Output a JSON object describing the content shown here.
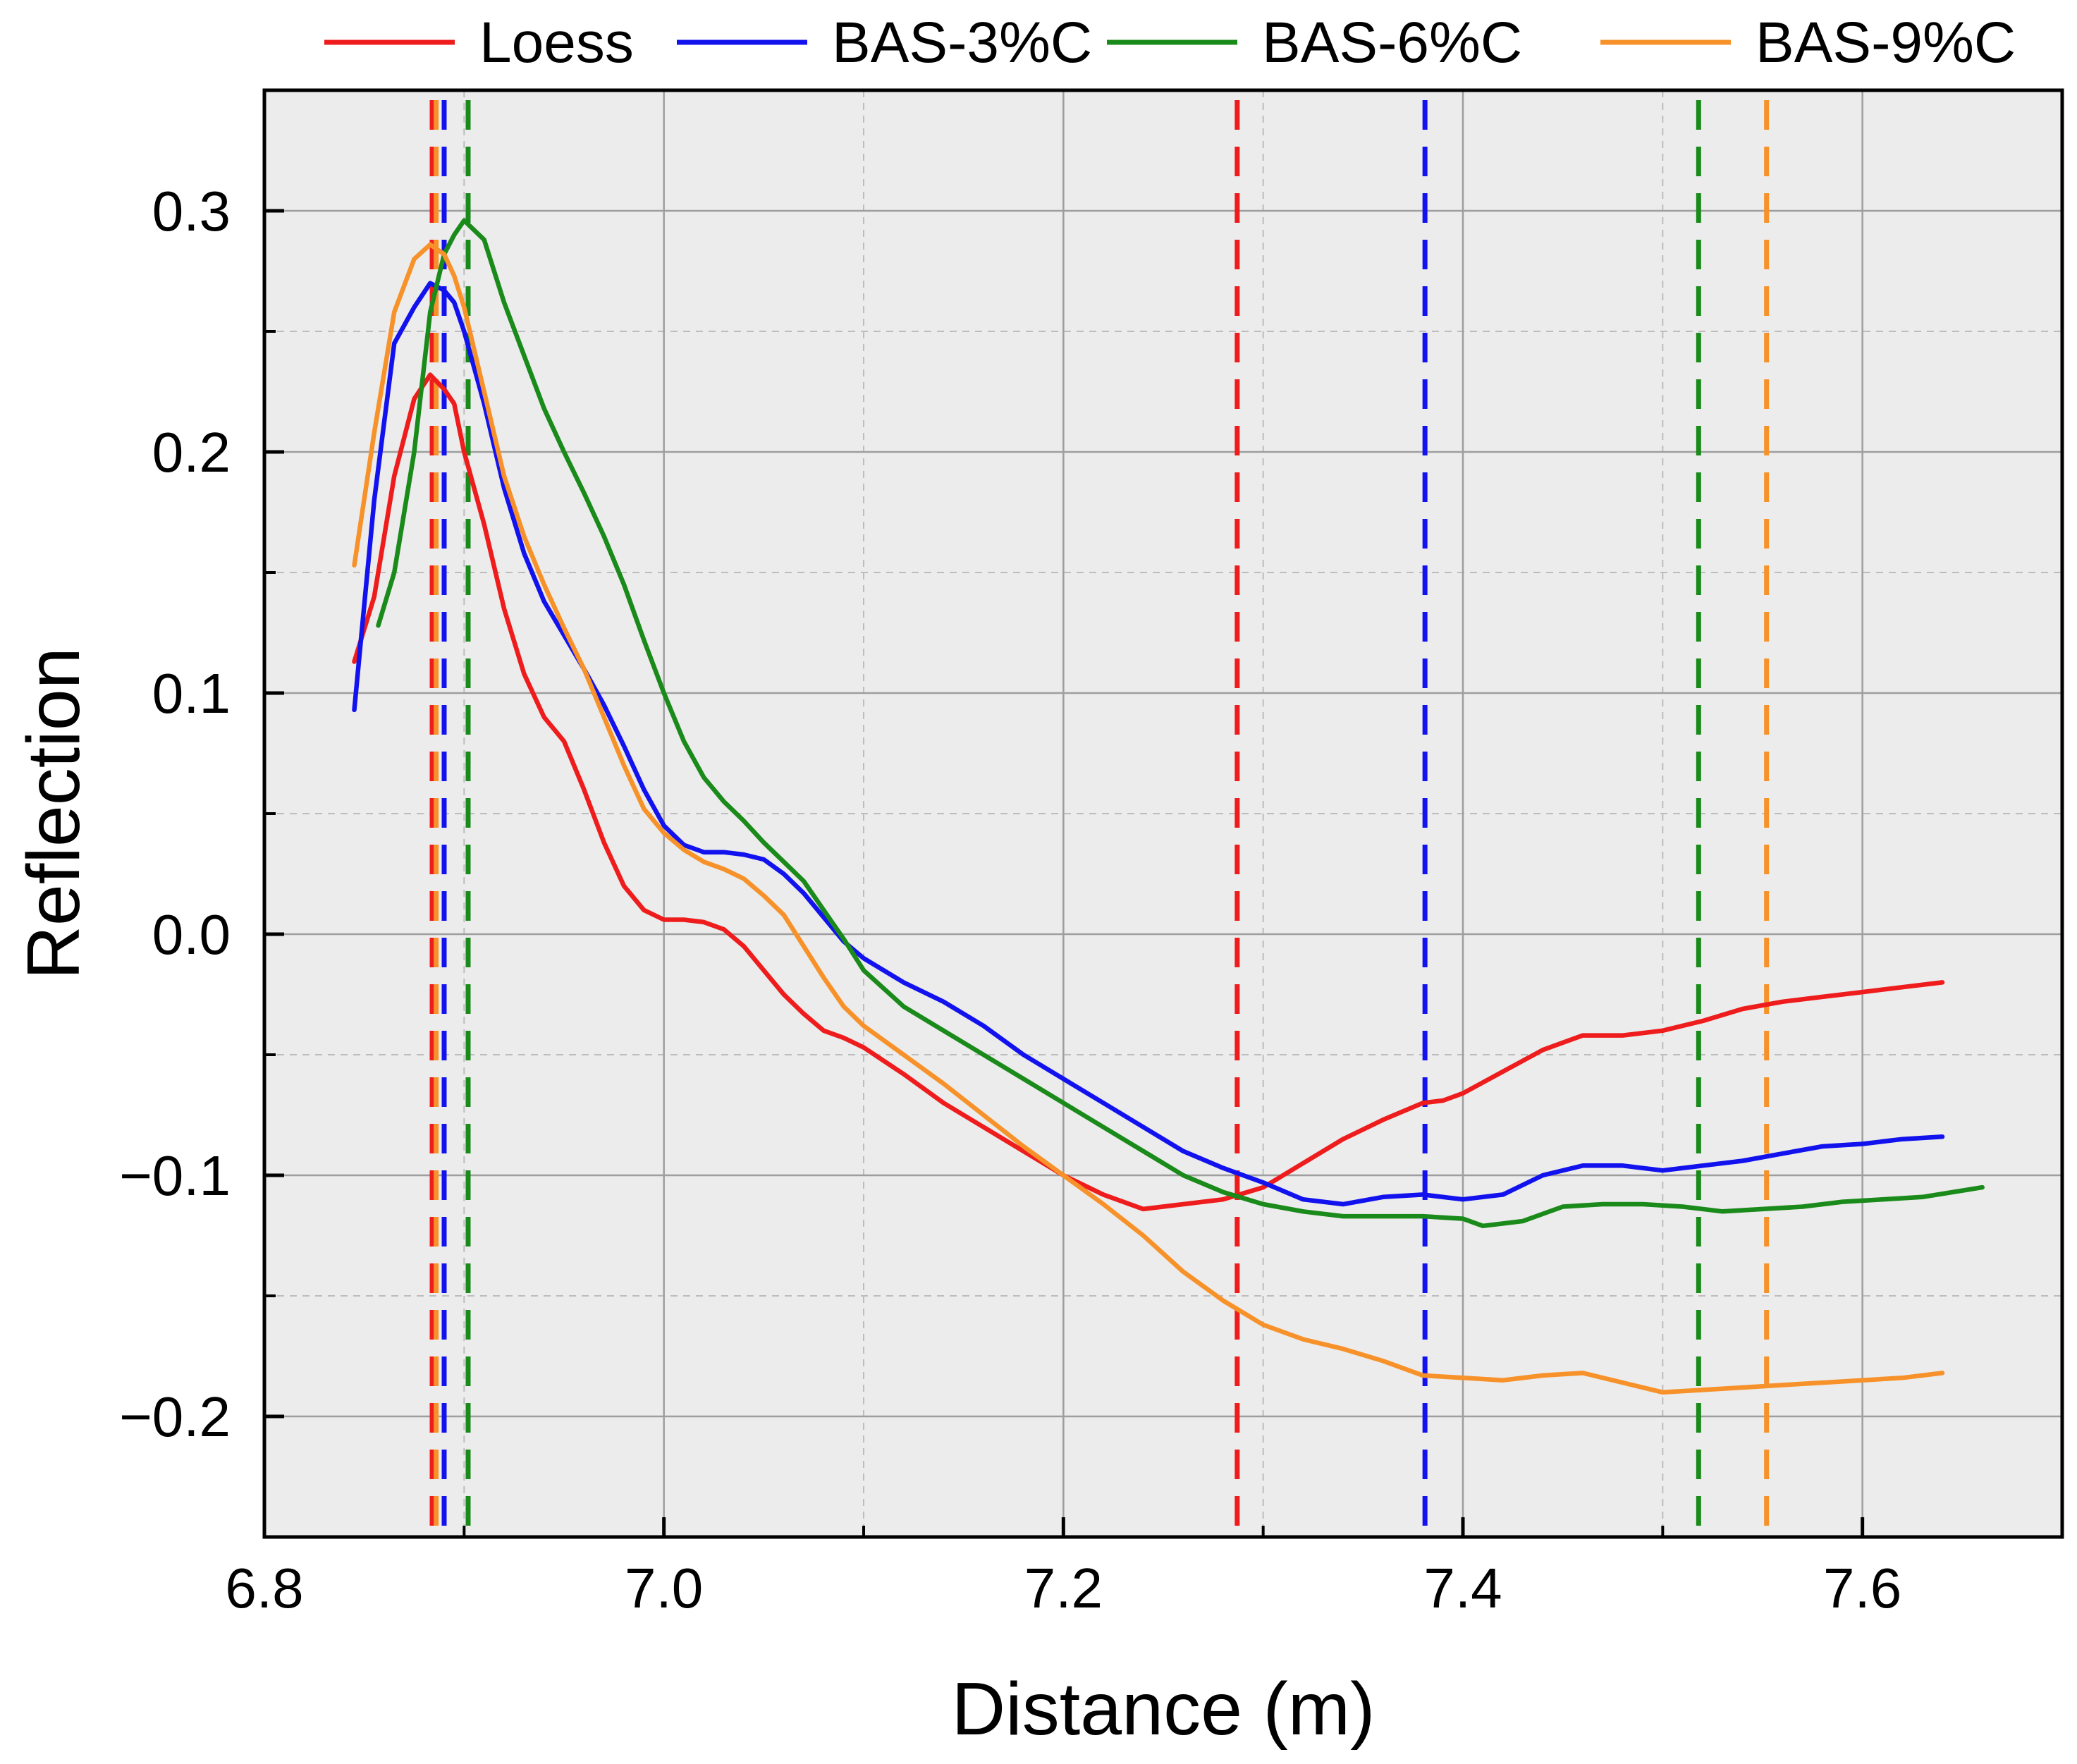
{
  "chart_data": {
    "type": "line",
    "title": "",
    "xlabel": "Distance (m)",
    "ylabel": "Reflection",
    "xlim": [
      6.8,
      7.7
    ],
    "ylim": [
      -0.25,
      0.35
    ],
    "x_ticks": [
      6.8,
      7.0,
      7.2,
      7.4,
      7.6
    ],
    "x_tick_labels": [
      "6.8",
      "7.0",
      "7.2",
      "7.4",
      "7.6"
    ],
    "y_ticks": [
      -0.2,
      -0.1,
      0.0,
      0.1,
      0.2,
      0.3
    ],
    "y_tick_labels": [
      "−0.2",
      "−0.1",
      "0.0",
      "0.1",
      "0.2",
      "0.3"
    ],
    "x_minor_ticks": [
      6.9,
      7.1,
      7.3,
      7.5,
      7.7
    ],
    "y_minor_ticks": [
      -0.15,
      -0.05,
      0.05,
      0.15,
      0.25
    ],
    "grid": true,
    "legend_position": "top",
    "series": [
      {
        "name": "Loess",
        "color": "#ee1c1c",
        "x": [
          6.845,
          6.855,
          6.865,
          6.875,
          6.883,
          6.89,
          6.895,
          6.9,
          6.91,
          6.92,
          6.93,
          6.94,
          6.95,
          6.96,
          6.97,
          6.98,
          6.99,
          7.0,
          7.01,
          7.02,
          7.03,
          7.04,
          7.05,
          7.06,
          7.07,
          7.08,
          7.09,
          7.1,
          7.12,
          7.14,
          7.16,
          7.18,
          7.2,
          7.22,
          7.24,
          7.26,
          7.28,
          7.3,
          7.32,
          7.34,
          7.36,
          7.38,
          7.39,
          7.4,
          7.42,
          7.44,
          7.46,
          7.48,
          7.5,
          7.52,
          7.54,
          7.56,
          7.58,
          7.6,
          7.62,
          7.64
        ],
        "values": [
          0.113,
          0.14,
          0.19,
          0.222,
          0.232,
          0.226,
          0.22,
          0.2,
          0.17,
          0.135,
          0.108,
          0.09,
          0.08,
          0.06,
          0.038,
          0.02,
          0.01,
          0.006,
          0.006,
          0.005,
          0.002,
          -0.005,
          -0.015,
          -0.025,
          -0.033,
          -0.04,
          -0.043,
          -0.047,
          -0.058,
          -0.07,
          -0.08,
          -0.09,
          -0.1,
          -0.108,
          -0.114,
          -0.112,
          -0.11,
          -0.105,
          -0.095,
          -0.085,
          -0.077,
          -0.07,
          -0.069,
          -0.066,
          -0.057,
          -0.048,
          -0.042,
          -0.042,
          -0.04,
          -0.036,
          -0.031,
          -0.028,
          -0.026,
          -0.024,
          -0.022,
          -0.02
        ]
      },
      {
        "name": "BAS-3%C",
        "color": "#1212ee",
        "x": [
          6.845,
          6.855,
          6.865,
          6.875,
          6.883,
          6.89,
          6.895,
          6.9,
          6.91,
          6.92,
          6.93,
          6.94,
          6.95,
          6.96,
          6.97,
          6.98,
          6.99,
          7.0,
          7.01,
          7.02,
          7.03,
          7.04,
          7.05,
          7.06,
          7.07,
          7.08,
          7.09,
          7.1,
          7.12,
          7.14,
          7.16,
          7.18,
          7.2,
          7.22,
          7.24,
          7.26,
          7.28,
          7.3,
          7.32,
          7.34,
          7.36,
          7.38,
          7.4,
          7.42,
          7.44,
          7.46,
          7.48,
          7.5,
          7.52,
          7.54,
          7.56,
          7.58,
          7.6,
          7.62,
          7.64
        ],
        "values": [
          0.093,
          0.18,
          0.245,
          0.26,
          0.27,
          0.267,
          0.262,
          0.25,
          0.22,
          0.185,
          0.158,
          0.138,
          0.124,
          0.11,
          0.095,
          0.078,
          0.06,
          0.045,
          0.037,
          0.034,
          0.034,
          0.033,
          0.031,
          0.025,
          0.017,
          0.007,
          -0.003,
          -0.01,
          -0.02,
          -0.028,
          -0.038,
          -0.05,
          -0.06,
          -0.07,
          -0.08,
          -0.09,
          -0.097,
          -0.103,
          -0.11,
          -0.112,
          -0.109,
          -0.108,
          -0.11,
          -0.108,
          -0.1,
          -0.096,
          -0.096,
          -0.098,
          -0.096,
          -0.094,
          -0.091,
          -0.088,
          -0.087,
          -0.085,
          -0.084
        ]
      },
      {
        "name": "BAS-6%C",
        "color": "#1a8a1a",
        "x": [
          6.857,
          6.865,
          6.875,
          6.883,
          6.89,
          6.895,
          6.9,
          6.91,
          6.92,
          6.93,
          6.94,
          6.95,
          6.96,
          6.97,
          6.98,
          6.99,
          7.0,
          7.01,
          7.02,
          7.03,
          7.04,
          7.05,
          7.06,
          7.07,
          7.08,
          7.09,
          7.1,
          7.12,
          7.14,
          7.16,
          7.18,
          7.2,
          7.22,
          7.24,
          7.26,
          7.28,
          7.3,
          7.32,
          7.34,
          7.36,
          7.38,
          7.4,
          7.41,
          7.43,
          7.45,
          7.47,
          7.49,
          7.51,
          7.53,
          7.55,
          7.57,
          7.59,
          7.61,
          7.63,
          7.66
        ],
        "values": [
          0.128,
          0.15,
          0.2,
          0.258,
          0.282,
          0.29,
          0.296,
          0.288,
          0.262,
          0.24,
          0.218,
          0.2,
          0.183,
          0.165,
          0.145,
          0.122,
          0.1,
          0.08,
          0.065,
          0.055,
          0.047,
          0.038,
          0.03,
          0.022,
          0.01,
          -0.002,
          -0.015,
          -0.03,
          -0.04,
          -0.05,
          -0.06,
          -0.07,
          -0.08,
          -0.09,
          -0.1,
          -0.107,
          -0.112,
          -0.115,
          -0.117,
          -0.117,
          -0.117,
          -0.118,
          -0.121,
          -0.119,
          -0.113,
          -0.112,
          -0.112,
          -0.113,
          -0.115,
          -0.114,
          -0.113,
          -0.111,
          -0.11,
          -0.109,
          -0.105
        ]
      },
      {
        "name": "BAS-9%C",
        "color": "#f7922a",
        "x": [
          6.845,
          6.855,
          6.865,
          6.875,
          6.883,
          6.89,
          6.895,
          6.9,
          6.91,
          6.92,
          6.93,
          6.94,
          6.95,
          6.96,
          6.97,
          6.98,
          6.99,
          7.0,
          7.01,
          7.02,
          7.03,
          7.04,
          7.05,
          7.06,
          7.07,
          7.08,
          7.09,
          7.1,
          7.12,
          7.14,
          7.16,
          7.18,
          7.2,
          7.22,
          7.24,
          7.26,
          7.28,
          7.3,
          7.32,
          7.34,
          7.36,
          7.38,
          7.4,
          7.42,
          7.44,
          7.46,
          7.48,
          7.5,
          7.52,
          7.54,
          7.56,
          7.58,
          7.6,
          7.62,
          7.64
        ],
        "values": [
          0.153,
          0.208,
          0.258,
          0.28,
          0.286,
          0.282,
          0.273,
          0.26,
          0.225,
          0.19,
          0.165,
          0.145,
          0.127,
          0.11,
          0.09,
          0.07,
          0.052,
          0.042,
          0.035,
          0.03,
          0.027,
          0.023,
          0.016,
          0.008,
          -0.005,
          -0.018,
          -0.03,
          -0.038,
          -0.05,
          -0.062,
          -0.075,
          -0.088,
          -0.1,
          -0.112,
          -0.125,
          -0.14,
          -0.152,
          -0.162,
          -0.168,
          -0.172,
          -0.177,
          -0.183,
          -0.184,
          -0.185,
          -0.183,
          -0.182,
          -0.186,
          -0.19,
          -0.189,
          -0.188,
          -0.187,
          -0.186,
          -0.185,
          -0.184,
          -0.182
        ]
      }
    ],
    "vertical_markers": [
      {
        "x": 6.884,
        "color": "#ee1c1c"
      },
      {
        "x": 6.886,
        "color": "#f7922a"
      },
      {
        "x": 6.89,
        "color": "#1212ee"
      },
      {
        "x": 6.902,
        "color": "#1a8a1a"
      },
      {
        "x": 7.287,
        "color": "#ee1c1c"
      },
      {
        "x": 7.381,
        "color": "#1212ee"
      },
      {
        "x": 7.518,
        "color": "#1a8a1a"
      },
      {
        "x": 7.552,
        "color": "#f7922a"
      }
    ]
  }
}
